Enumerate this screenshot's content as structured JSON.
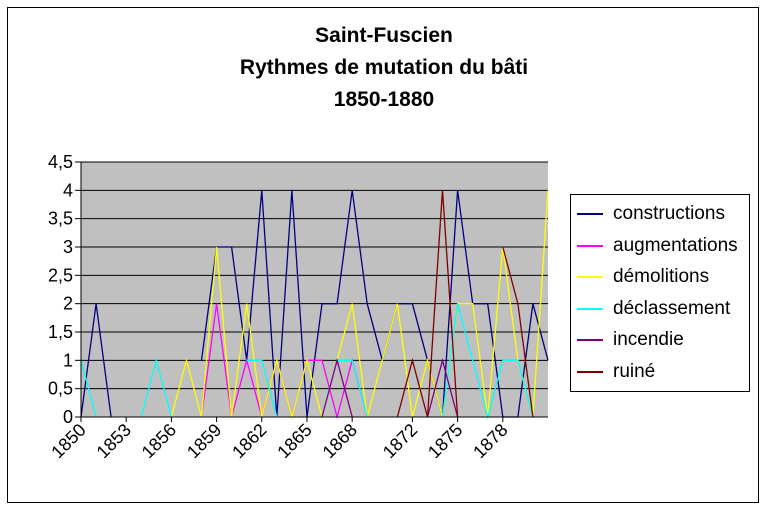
{
  "chart_data": {
    "type": "line",
    "title": [
      "Saint-Fuscien",
      "Rythmes de mutation du bâti",
      "1850-1880"
    ],
    "xlabel": "",
    "ylabel": "",
    "ylim": [
      0,
      4.5
    ],
    "ytick_labels": [
      "0",
      "0,5",
      "1",
      "1,5",
      "2",
      "2,5",
      "3",
      "3,5",
      "4",
      "4,5"
    ],
    "x": [
      1850,
      1851,
      1852,
      1853,
      1854,
      1855,
      1856,
      1857,
      1858,
      1859,
      1860,
      1861,
      1862,
      1863,
      1864,
      1865,
      1866,
      1867,
      1868,
      1869,
      1870,
      1871,
      1872,
      1873,
      1874,
      1875,
      1876,
      1877,
      1878,
      1879,
      1880,
      1881
    ],
    "xtick_labels": [
      "1850",
      "1853",
      "1856",
      "1859",
      "1862",
      "1865",
      "1868",
      "1872",
      "1875",
      "1878"
    ],
    "grid": true,
    "legend_position": "right",
    "series": [
      {
        "name": "constructions",
        "color": "#000080",
        "values": [
          0,
          2,
          0,
          null,
          null,
          null,
          null,
          null,
          1,
          3,
          3,
          1,
          4,
          0,
          4,
          0,
          2,
          2,
          4,
          2,
          1,
          2,
          2,
          1,
          0,
          4,
          2,
          2,
          0,
          0,
          2,
          1
        ]
      },
      {
        "name": "augmentations",
        "color": "#ff00ff",
        "values": [
          null,
          null,
          null,
          null,
          null,
          null,
          null,
          null,
          0,
          2,
          0,
          1,
          0,
          1,
          0,
          1,
          1,
          0,
          1,
          0,
          null,
          null,
          null,
          null,
          null,
          null,
          null,
          null,
          null,
          null,
          null,
          null
        ]
      },
      {
        "name": "démolitions",
        "color": "#ffff00",
        "values": [
          null,
          null,
          null,
          null,
          null,
          null,
          0,
          1,
          0,
          3,
          0,
          2,
          0,
          1,
          0,
          1,
          0,
          1,
          2,
          0,
          1,
          2,
          0,
          1,
          0,
          2,
          2,
          0,
          3,
          1,
          0,
          4
        ]
      },
      {
        "name": "déclassement",
        "color": "#00ffff",
        "values": [
          1,
          0,
          null,
          null,
          0,
          1,
          0,
          null,
          null,
          null,
          null,
          1,
          1,
          0,
          null,
          null,
          0,
          1,
          1,
          0,
          null,
          null,
          null,
          null,
          0,
          2,
          1,
          0,
          1,
          1,
          0,
          null
        ]
      },
      {
        "name": "incendie",
        "color": "#800080",
        "values": [
          null,
          null,
          null,
          null,
          null,
          null,
          null,
          null,
          null,
          null,
          null,
          null,
          null,
          null,
          null,
          null,
          0,
          1,
          0,
          null,
          null,
          null,
          null,
          0,
          1,
          0,
          null,
          null,
          null,
          null,
          null,
          null
        ]
      },
      {
        "name": "ruiné",
        "color": "#800000",
        "values": [
          null,
          null,
          null,
          null,
          null,
          null,
          null,
          null,
          null,
          null,
          null,
          null,
          null,
          null,
          null,
          null,
          null,
          null,
          null,
          null,
          null,
          0,
          1,
          0,
          4,
          0,
          null,
          null,
          3,
          2,
          0,
          null
        ]
      }
    ]
  }
}
